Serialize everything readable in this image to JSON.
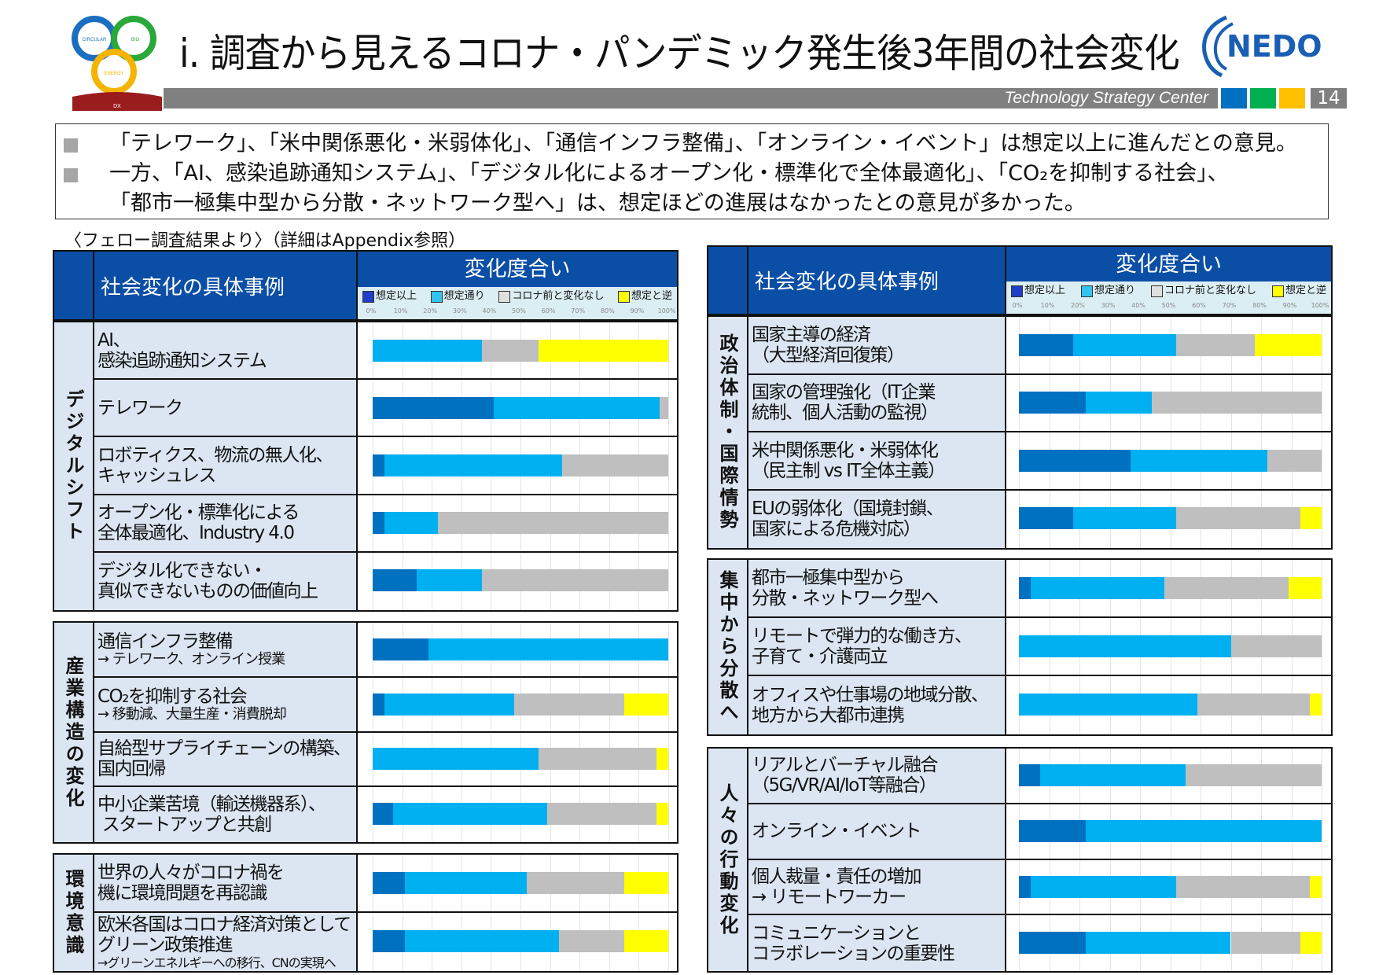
{
  "header": {
    "title": "i. 調査から見えるコロナ・パンデミック発生後3年間の社会変化",
    "org_bar_text": "Technology Strategy Center",
    "page_number": "14",
    "logo_left_text": [
      "CIRCULAR",
      "BIO",
      "ENERGY",
      "DX"
    ],
    "logo_right_text": "NEDO",
    "accent_squares": [
      "#0070c0",
      "#00b050",
      "#ffc000"
    ]
  },
  "summary": {
    "bullets": [
      [
        "「テレワーク」、「米中関係悪化・米弱体化」、「通信インフラ整備」、「オンライン・イベント」は想定以上に進んだとの意見。"
      ],
      [
        "一方、「AI、感染追跡通知システム」、「デジタル化によるオープン化・標準化で全体最適化」、「CO₂を抑制する社会」、",
        "「都市一極集中型から分散・ネットワーク型へ」は、想定ほどの進展はなかったとの意見が多かった。"
      ]
    ]
  },
  "note": "〈フェロー調査結果より〉（詳細はAppendix参照）",
  "colors": {
    "header_blue": "#0a4ea6",
    "label_bg": "#dce6f2",
    "legend_bg": "#dbeef4"
  },
  "chart_data": [
    {
      "type": "bar",
      "orientation": "horizontal",
      "stacked": "100%",
      "column_header": "社会変化の具体事例",
      "title": "変化度合い",
      "legend": [
        "想定以上",
        "想定通り",
        "コロナ前と変化なし",
        "想定と逆"
      ],
      "series_colors": [
        "#0070c0",
        "#00b0f0",
        "#bfbfbf",
        "#ffff00"
      ],
      "xlim": [
        0,
        100
      ],
      "x_ticks": [
        "0%",
        "10%",
        "20%",
        "30%",
        "40%",
        "50%",
        "60%",
        "70%",
        "80%",
        "90%",
        "100%"
      ],
      "grid": true,
      "sections": [
        {
          "category": "デジタルシフト",
          "rows": [
            {
              "label": "AI、\n感染追跡通知システム",
              "values": [
                0,
                37,
                19,
                44
              ]
            },
            {
              "label": "テレワーク",
              "values": [
                41,
                56,
                3,
                0
              ]
            },
            {
              "label": "ロボティクス、物流の無人化、\nキャッシュレス",
              "values": [
                4,
                60,
                36,
                0
              ]
            },
            {
              "label": "オープン化・標準化による\n全体最適化、Industry 4.0",
              "values": [
                4,
                18,
                78,
                0
              ]
            },
            {
              "label": "デジタル化できない・\n真似できないものの価値向上",
              "values": [
                15,
                22,
                63,
                0
              ]
            }
          ]
        },
        {
          "category": "産業構造の変化",
          "rows": [
            {
              "label": "通信インフラ整備",
              "sub": "→ テレワーク、オンライン授業",
              "values": [
                19,
                81,
                0,
                0
              ]
            },
            {
              "label": "CO₂を抑制する社会",
              "sub": "→ 移動減、大量生産・消費脱却",
              "values": [
                4,
                44,
                37,
                15
              ]
            },
            {
              "label": "自給型サプライチェーンの構築、\n国内回帰",
              "values": [
                0,
                56,
                40,
                4
              ]
            },
            {
              "label": "中小企業苦境（輸送機器系）、\n スタートアップと共創",
              "values": [
                7,
                52,
                37,
                4
              ]
            }
          ]
        },
        {
          "category": "環境意識",
          "rows": [
            {
              "label": "世界の人々がコロナ禍を\n機に環境問題を再認識",
              "values": [
                11,
                41,
                33,
                15
              ]
            },
            {
              "label": "欧米各国はコロナ経済対策として\nグリーン政策推進",
              "sub": "→グリーンエネルギーへの移行、CNの実現へ",
              "values": [
                11,
                52,
                22,
                15
              ]
            }
          ]
        }
      ]
    },
    {
      "type": "bar",
      "orientation": "horizontal",
      "stacked": "100%",
      "column_header": "社会変化の具体事例",
      "title": "変化度合い",
      "legend": [
        "想定以上",
        "想定通り",
        "コロナ前と変化なし",
        "想定と逆"
      ],
      "series_colors": [
        "#0070c0",
        "#00b0f0",
        "#bfbfbf",
        "#ffff00"
      ],
      "xlim": [
        0,
        100
      ],
      "x_ticks": [
        "0%",
        "10%",
        "20%",
        "30%",
        "40%",
        "50%",
        "60%",
        "70%",
        "80%",
        "90%",
        "100%"
      ],
      "grid": true,
      "sections": [
        {
          "category": "政治体制・国際情勢",
          "rows": [
            {
              "label": "国家主導の経済\n（大型経済回復策）",
              "values": [
                18,
                34,
                26,
                22
              ]
            },
            {
              "label": "国家の管理強化（IT企業\n統制、個人活動の監視）",
              "values": [
                22,
                22,
                56,
                0
              ]
            },
            {
              "label": "米中関係悪化・米弱体化\n（民主制 vs IT全体主義）",
              "values": [
                37,
                45,
                18,
                0
              ]
            },
            {
              "label": "EUの弱体化（国境封鎖、\n国家による危機対応）",
              "values": [
                18,
                34,
                41,
                7
              ]
            }
          ]
        },
        {
          "category": "集中から分散へ",
          "rows": [
            {
              "label": "都市一極集中型から\n分散・ネットワーク型へ",
              "values": [
                4,
                44,
                41,
                11
              ]
            },
            {
              "label": "リモートで弾力的な働き方、\n子育て・介護両立",
              "values": [
                0,
                70,
                30,
                0
              ]
            },
            {
              "label": "オフィスや仕事場の地域分散、\n地方から大都市連携",
              "values": [
                0,
                59,
                37,
                4
              ]
            }
          ]
        },
        {
          "category": "人々の行動変化",
          "rows": [
            {
              "label": "リアルとバーチャル融合\n（5G/VR/AI/IoT等融合）",
              "values": [
                7,
                48,
                45,
                0
              ]
            },
            {
              "label": "オンライン・イベント",
              "values": [
                22,
                78,
                0,
                0
              ]
            },
            {
              "label": "個人裁量・責任の増加\n→ リモートワーカー",
              "values": [
                4,
                48,
                44,
                4
              ]
            },
            {
              "label": "コミュニケーションと\nコラボレーションの重要性",
              "values": [
                22,
                48,
                23,
                7
              ]
            }
          ]
        }
      ]
    }
  ]
}
